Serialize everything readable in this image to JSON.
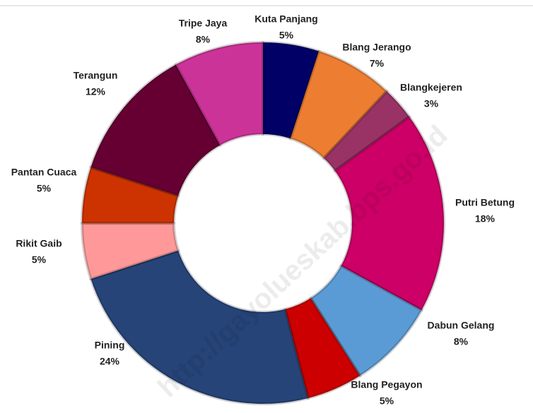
{
  "chart_data": {
    "type": "donut",
    "categories": [
      "Kuta Panjang",
      "Blang Jerango",
      "Blangkejeren",
      "Putri Betung",
      "Dabun Gelang",
      "Blang Pegayon",
      "Pining",
      "Rikit Gaib",
      "Pantan Cuaca",
      "Terangun",
      "Tripe Jaya"
    ],
    "values": [
      5,
      7,
      3,
      18,
      8,
      5,
      24,
      5,
      5,
      12,
      8
    ],
    "value_labels": [
      "5%",
      "7%",
      "3%",
      "18%",
      "8%",
      "5%",
      "24%",
      "5%",
      "5%",
      "12%",
      "8%"
    ],
    "colors": [
      "#000066",
      "#ed7d31",
      "#993366",
      "#cc0066",
      "#5b9bd5",
      "#cc0000",
      "#264478",
      "#ff9999",
      "#cc3300",
      "#660033",
      "#cc3399"
    ],
    "watermark": "http://gayolueskab.bps.go.id"
  }
}
